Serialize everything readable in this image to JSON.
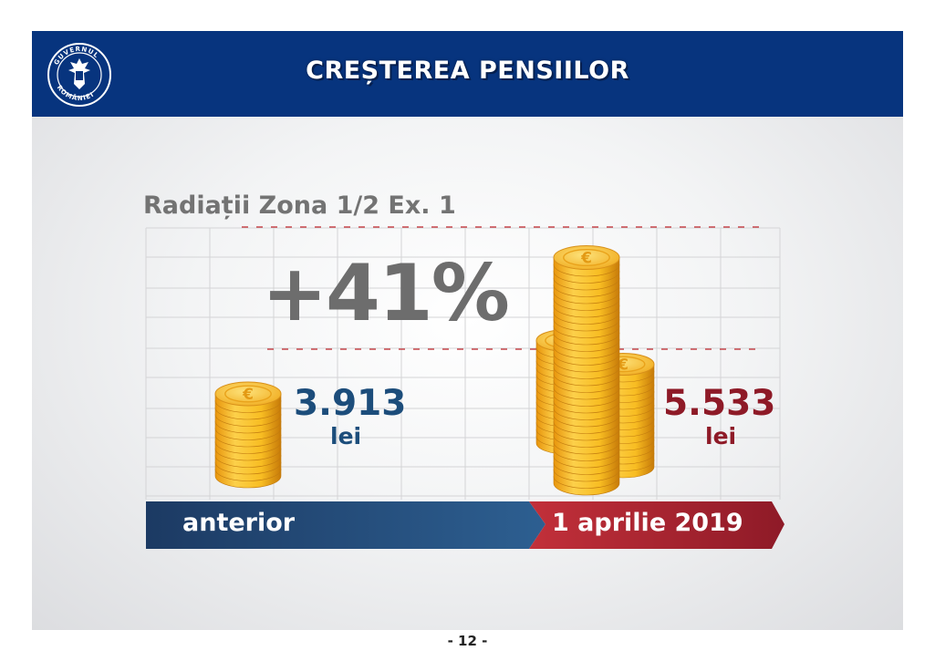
{
  "header": {
    "title": "CREȘTEREA PENSIILOR",
    "logo_text": "GUVERNUL ROMÂNIEI"
  },
  "subtitle": "Radiații Zona 1/2 Ex. 1",
  "increase_label": "+41%",
  "before": {
    "value": "3.913",
    "unit": "lei",
    "label": "anterior"
  },
  "after": {
    "value": "5.533",
    "unit": "lei",
    "label": "1 aprilie 2019"
  },
  "page_number": "- 12 -",
  "colors": {
    "header_bg": "#07347e",
    "before_blue": "#1c4d7b",
    "after_red": "#8e1a27",
    "coin_gold": "#f5b51c"
  }
}
